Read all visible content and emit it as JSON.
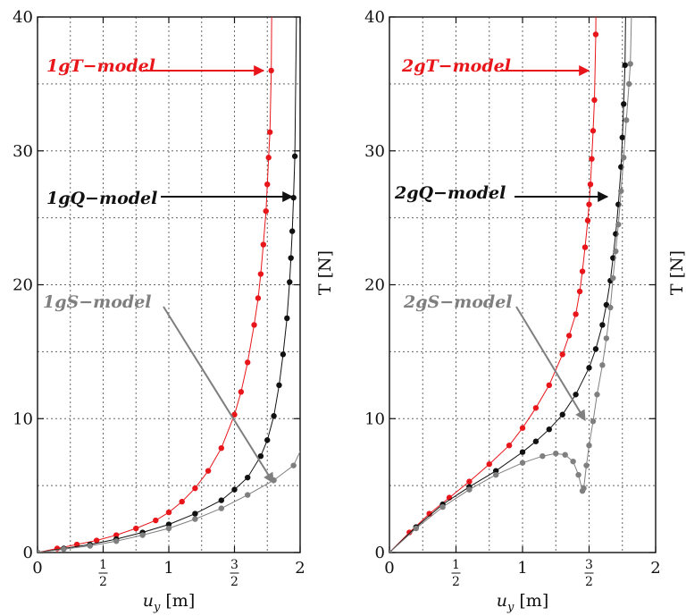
{
  "chart_data": [
    {
      "type": "scatter",
      "panel": "left",
      "xlabel_var": "u",
      "xlabel_sub": "y",
      "xlabel_unit": "[m]",
      "ylabel": "T [N]",
      "xlim": [
        0,
        2
      ],
      "ylim": [
        0,
        40
      ],
      "x_ticks": [
        {
          "value": 0,
          "label": "0"
        },
        {
          "value": 0.5,
          "label": "1/2",
          "num": "1",
          "den": "2"
        },
        {
          "value": 1,
          "label": "1"
        },
        {
          "value": 1.5,
          "label": "3/2",
          "num": "3",
          "den": "2"
        },
        {
          "value": 2,
          "label": "2"
        }
      ],
      "y_ticks": [
        0,
        10,
        20,
        30,
        40
      ],
      "grid": true,
      "series": [
        {
          "name": "1gT−model",
          "color": "#e8161a",
          "x": [
            0.0,
            0.15,
            0.3,
            0.45,
            0.6,
            0.75,
            0.9,
            1.0,
            1.1,
            1.2,
            1.3,
            1.4,
            1.5,
            1.55,
            1.6,
            1.65,
            1.68,
            1.7,
            1.72,
            1.74,
            1.75,
            1.76,
            1.77,
            1.78
          ],
          "y": [
            0.0,
            0.3,
            0.6,
            0.9,
            1.3,
            1.8,
            2.4,
            3.0,
            3.8,
            4.8,
            6.1,
            7.8,
            10.3,
            12.0,
            14.2,
            17.0,
            19.0,
            20.8,
            23.0,
            25.5,
            27.5,
            29.5,
            31.4,
            36.0
          ]
        },
        {
          "name": "1gQ−model",
          "color": "#111111",
          "x": [
            0.0,
            0.2,
            0.4,
            0.6,
            0.8,
            1.0,
            1.2,
            1.4,
            1.5,
            1.6,
            1.7,
            1.75,
            1.8,
            1.84,
            1.87,
            1.9,
            1.92,
            1.93,
            1.94,
            1.95,
            1.96
          ],
          "y": [
            0.0,
            0.3,
            0.6,
            1.0,
            1.5,
            2.1,
            2.9,
            3.9,
            4.7,
            5.6,
            7.2,
            8.4,
            10.2,
            12.5,
            14.8,
            17.5,
            20.2,
            22.0,
            24.0,
            26.5,
            29.6
          ]
        },
        {
          "name": "1gS−model",
          "color": "#7f7f7f",
          "x": [
            0.0,
            0.2,
            0.4,
            0.6,
            0.8,
            1.0,
            1.2,
            1.4,
            1.6,
            1.8,
            1.95
          ],
          "y": [
            0.0,
            0.25,
            0.5,
            0.85,
            1.3,
            1.8,
            2.5,
            3.3,
            4.3,
            5.4,
            6.5
          ]
        }
      ],
      "annotations": [
        {
          "text": "1gT−model",
          "color": "#e8161a"
        },
        {
          "text": "1gQ−model",
          "color": "#111111"
        },
        {
          "text": "1gS−model",
          "color": "#7f7f7f"
        }
      ]
    },
    {
      "type": "scatter",
      "panel": "right",
      "xlabel_var": "u",
      "xlabel_sub": "y",
      "xlabel_unit": "[m]",
      "ylabel": "T [N]",
      "xlim": [
        0,
        2
      ],
      "ylim": [
        0,
        40
      ],
      "x_ticks": [
        {
          "value": 0,
          "label": "0"
        },
        {
          "value": 0.5,
          "label": "1/2",
          "num": "1",
          "den": "2"
        },
        {
          "value": 1,
          "label": "1"
        },
        {
          "value": 1.5,
          "label": "3/2",
          "num": "3",
          "den": "2"
        },
        {
          "value": 2,
          "label": "2"
        }
      ],
      "y_ticks": [
        0,
        10,
        20,
        30,
        40
      ],
      "grid": true,
      "series": [
        {
          "name": "2gT−model",
          "color": "#e8161a",
          "x": [
            0.0,
            0.15,
            0.3,
            0.45,
            0.6,
            0.75,
            0.9,
            1.0,
            1.1,
            1.2,
            1.3,
            1.35,
            1.4,
            1.43,
            1.45,
            1.47,
            1.49,
            1.5,
            1.51,
            1.52,
            1.53,
            1.54,
            1.55
          ],
          "y": [
            0.0,
            1.5,
            2.9,
            4.1,
            5.3,
            6.6,
            8.0,
            9.3,
            10.8,
            12.5,
            14.8,
            16.2,
            17.8,
            19.5,
            21.0,
            22.8,
            24.8,
            26.0,
            27.5,
            29.4,
            31.5,
            33.8,
            38.7
          ]
        },
        {
          "name": "2gQ−model",
          "color": "#111111",
          "x": [
            0.0,
            0.2,
            0.4,
            0.6,
            0.8,
            1.0,
            1.1,
            1.2,
            1.3,
            1.4,
            1.5,
            1.55,
            1.6,
            1.63,
            1.66,
            1.68,
            1.7,
            1.72,
            1.74,
            1.75,
            1.76,
            1.77
          ],
          "y": [
            0.0,
            1.9,
            3.6,
            4.9,
            6.1,
            7.5,
            8.3,
            9.2,
            10.3,
            11.8,
            13.8,
            15.2,
            17.0,
            18.5,
            20.3,
            22.0,
            23.8,
            26.0,
            28.8,
            31.0,
            33.5,
            36.4
          ]
        },
        {
          "name": "2gS−model",
          "color": "#7f7f7f",
          "x": [
            0.0,
            0.2,
            0.4,
            0.6,
            0.8,
            1.0,
            1.15,
            1.25,
            1.32,
            1.38,
            1.42,
            1.45,
            1.46,
            1.48,
            1.5,
            1.53,
            1.56,
            1.6,
            1.63,
            1.66,
            1.68,
            1.7,
            1.72,
            1.74,
            1.76,
            1.78,
            1.8,
            1.81
          ],
          "y": [
            0.0,
            1.8,
            3.4,
            4.7,
            5.8,
            6.7,
            7.2,
            7.4,
            7.3,
            6.8,
            5.8,
            4.6,
            4.8,
            6.5,
            8.0,
            9.8,
            11.8,
            14.0,
            16.0,
            18.3,
            20.5,
            22.5,
            24.5,
            27.0,
            29.5,
            32.3,
            35.0,
            36.5
          ]
        }
      ],
      "annotations": [
        {
          "text": "2gT−model",
          "color": "#e8161a"
        },
        {
          "text": "2gQ−model",
          "color": "#111111"
        },
        {
          "text": "2gS−model",
          "color": "#7f7f7f"
        }
      ]
    }
  ]
}
